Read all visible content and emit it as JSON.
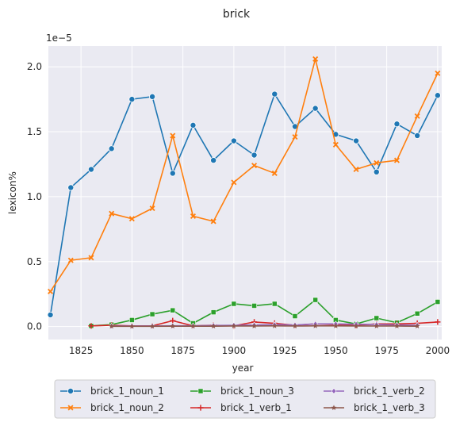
{
  "chart_data": {
    "type": "line",
    "title": "brick",
    "xlabel": "year",
    "ylabel": "lexicon%",
    "y_scale_label": "1e−5",
    "xlim": [
      1809,
      2002
    ],
    "ylim": [
      -0.1,
      2.16
    ],
    "x_ticks": [
      1825,
      1850,
      1875,
      1900,
      1925,
      1950,
      1975,
      2000
    ],
    "y_ticks": [
      0.0,
      0.5,
      1.0,
      1.5,
      2.0
    ],
    "y_tick_labels": [
      "0.0",
      "0.5",
      "1.0",
      "1.5",
      "2.0"
    ],
    "grid": true,
    "background": "#eaeaf2",
    "legend_position": "bottom",
    "series": [
      {
        "name": "brick_1_noun_1",
        "color": "#1f77b4",
        "marker": "circle",
        "x": [
          1810,
          1820,
          1830,
          1840,
          1850,
          1860,
          1870,
          1880,
          1890,
          1900,
          1910,
          1920,
          1930,
          1940,
          1950,
          1960,
          1970,
          1980,
          1990,
          2000
        ],
        "y": [
          0.09,
          1.07,
          1.21,
          1.37,
          1.75,
          1.77,
          1.18,
          1.55,
          1.28,
          1.43,
          1.32,
          1.79,
          1.54,
          1.68,
          1.48,
          1.43,
          1.19,
          1.56,
          1.47,
          1.78
        ]
      },
      {
        "name": "brick_1_noun_2",
        "color": "#ff7f0e",
        "marker": "x",
        "x": [
          1810,
          1820,
          1830,
          1840,
          1850,
          1860,
          1870,
          1880,
          1890,
          1900,
          1910,
          1920,
          1930,
          1940,
          1950,
          1960,
          1970,
          1980,
          1990,
          2000
        ],
        "y": [
          0.27,
          0.51,
          0.53,
          0.87,
          0.83,
          0.91,
          1.47,
          0.85,
          0.81,
          1.11,
          1.24,
          1.18,
          1.46,
          2.06,
          1.4,
          1.21,
          1.26,
          1.28,
          1.62,
          1.95
        ]
      },
      {
        "name": "brick_1_noun_3",
        "color": "#2ca02c",
        "marker": "square",
        "x": [
          1830,
          1840,
          1850,
          1860,
          1870,
          1880,
          1890,
          1900,
          1910,
          1920,
          1930,
          1940,
          1950,
          1960,
          1970,
          1980,
          1990,
          2000
        ],
        "y": [
          0.005,
          0.015,
          0.05,
          0.095,
          0.125,
          0.025,
          0.11,
          0.175,
          0.16,
          0.175,
          0.08,
          0.205,
          0.05,
          0.02,
          0.065,
          0.03,
          0.1,
          0.19
        ]
      },
      {
        "name": "brick_1_verb_1",
        "color": "#d62728",
        "marker": "plus",
        "x": [
          1830,
          1840,
          1850,
          1860,
          1870,
          1880,
          1890,
          1900,
          1910,
          1920,
          1930,
          1940,
          1950,
          1960,
          1970,
          1980,
          1990,
          2000
        ],
        "y": [
          0.005,
          0.01,
          0.005,
          0.005,
          0.045,
          0.005,
          0.01,
          0.005,
          0.035,
          0.025,
          0.01,
          0.02,
          0.015,
          0.01,
          0.02,
          0.02,
          0.025,
          0.035
        ]
      },
      {
        "name": "brick_1_verb_2",
        "color": "#9467bd",
        "marker": "diamond",
        "x": [
          1840,
          1850,
          1860,
          1870,
          1880,
          1890,
          1900,
          1910,
          1920,
          1930,
          1940,
          1950,
          1960,
          1970,
          1980,
          1990
        ],
        "y": [
          0.004,
          0.004,
          0.004,
          0.006,
          0.006,
          0.008,
          0.01,
          0.012,
          0.014,
          0.012,
          0.02,
          0.02,
          0.018,
          0.016,
          0.012,
          0.01
        ]
      },
      {
        "name": "brick_1_verb_3",
        "color": "#8c564b",
        "marker": "star",
        "x": [
          1840,
          1850,
          1860,
          1870,
          1880,
          1890,
          1900,
          1910,
          1920,
          1930,
          1940,
          1950,
          1960,
          1970,
          1980,
          1990
        ],
        "y": [
          0.002,
          0.002,
          0.002,
          0.003,
          0.003,
          0.003,
          0.004,
          0.004,
          0.005,
          0.004,
          0.005,
          0.005,
          0.004,
          0.004,
          0.004,
          0.003
        ]
      }
    ]
  }
}
